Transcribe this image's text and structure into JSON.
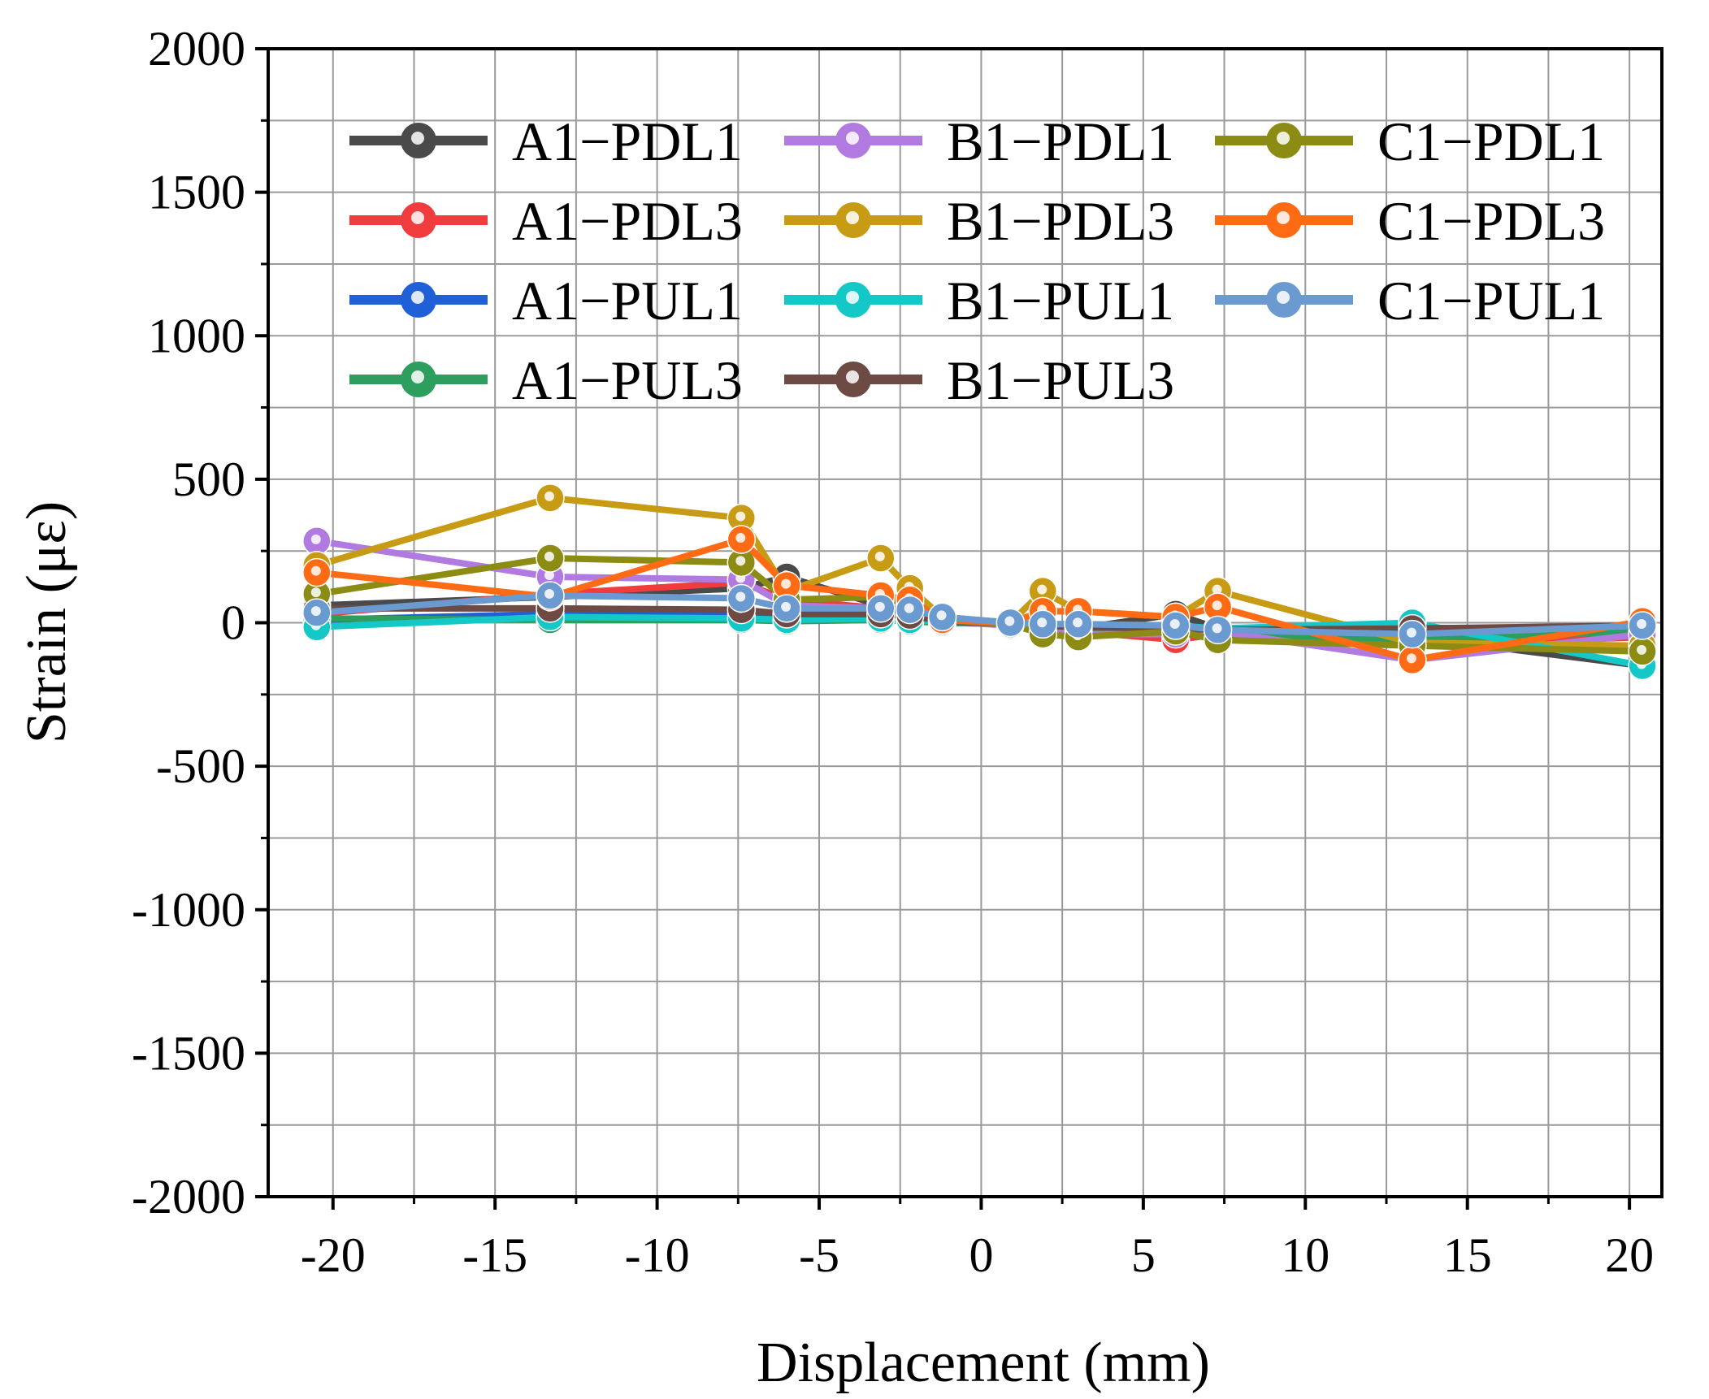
{
  "chart_data": {
    "type": "line",
    "title": "",
    "xlabel": "Displacement (mm)",
    "ylabel": "Strain (με)",
    "xlim": [
      -22,
      21
    ],
    "ylim": [
      -2000,
      2000
    ],
    "xticks": [
      -20,
      -15,
      -10,
      -5,
      0,
      5,
      10,
      15,
      20
    ],
    "xtick_labels": [
      "-20",
      "-15",
      "-10",
      "-5",
      "0",
      "5",
      "10",
      "15",
      "20"
    ],
    "yticks": [
      2000,
      1500,
      1000,
      500,
      0,
      -500,
      -1000,
      -1500,
      -2000
    ],
    "ytick_labels": [
      "2000",
      "1500",
      "1000",
      "500",
      "0",
      "-500",
      "-1000",
      "-1500",
      "-2000"
    ],
    "grid": true,
    "legend_position": "top",
    "series": [
      {
        "name": "A1−PDL1",
        "color": "#4a4a4a",
        "x": [
          -20.5,
          -13.3,
          -7.4,
          -6.0,
          -3.1,
          -2.2,
          -1.2,
          0.9,
          1.9,
          3.0,
          6.0,
          7.3,
          13.3,
          20.4
        ],
        "y": [
          60,
          90,
          120,
          160,
          60,
          40,
          10,
          -5,
          -15,
          -20,
          30,
          -20,
          -50,
          -150
        ]
      },
      {
        "name": "A1−PDL3",
        "color": "#f03c3c",
        "x": [
          -20.5,
          -13.3,
          -7.4,
          -6.0,
          -3.1,
          -2.2,
          -1.2,
          0.9,
          1.9,
          3.0,
          6.0,
          7.3,
          13.3,
          20.4
        ],
        "y": [
          30,
          100,
          140,
          80,
          50,
          30,
          0,
          -5,
          -20,
          -30,
          -60,
          -40,
          -80,
          -50
        ]
      },
      {
        "name": "A1−PUL1",
        "color": "#1f5fd8",
        "x": [
          -20.5,
          -13.3,
          -7.4,
          -6.0,
          -3.1,
          -2.2,
          -1.2,
          0.9,
          1.9,
          3.0,
          6.0,
          7.3,
          13.3,
          20.4
        ],
        "y": [
          10,
          30,
          30,
          20,
          20,
          15,
          5,
          -5,
          -10,
          -15,
          -20,
          -30,
          -40,
          -20
        ]
      },
      {
        "name": "A1−PUL3",
        "color": "#2e9e5e",
        "x": [
          -20.5,
          -13.3,
          -7.4,
          -6.0,
          -3.1,
          -2.2,
          -1.2,
          0.9,
          1.9,
          3.0,
          6.0,
          7.3,
          13.3,
          20.4
        ],
        "y": [
          15,
          10,
          10,
          5,
          10,
          5,
          0,
          -5,
          -15,
          -20,
          -30,
          -40,
          -60,
          -30
        ]
      },
      {
        "name": "B1−PDL1",
        "color": "#b07ae0",
        "x": [
          -20.5,
          -13.3,
          -7.4,
          -6.0,
          -3.1,
          -2.2,
          -1.2,
          0.9,
          1.9,
          3.0,
          6.0,
          7.3,
          13.3,
          20.4
        ],
        "y": [
          285,
          160,
          150,
          60,
          50,
          30,
          5,
          -10,
          -30,
          -40,
          -40,
          -30,
          -130,
          -40
        ]
      },
      {
        "name": "B1−PDL3",
        "color": "#c89b14",
        "x": [
          -20.5,
          -13.3,
          -7.4,
          -6.0,
          -3.1,
          -2.2,
          -1.2,
          0.9,
          1.9,
          3.0,
          6.0,
          7.3,
          13.3,
          20.4
        ],
        "y": [
          200,
          435,
          365,
          110,
          225,
          120,
          20,
          0,
          110,
          40,
          20,
          110,
          -70,
          -80
        ]
      },
      {
        "name": "B1−PUL1",
        "color": "#14c8c8",
        "x": [
          -20.5,
          -13.3,
          -7.4,
          -6.0,
          -3.1,
          -2.2,
          -1.2,
          0.9,
          1.9,
          3.0,
          6.0,
          7.3,
          13.3,
          20.4
        ],
        "y": [
          -15,
          20,
          15,
          10,
          15,
          10,
          5,
          0,
          -5,
          -5,
          -10,
          -20,
          0,
          -150
        ]
      },
      {
        "name": "B1−PUL3",
        "color": "#6e4a44",
        "x": [
          -20.5,
          -13.3,
          -7.4,
          -6.0,
          -3.1,
          -2.2,
          -1.2,
          0.9,
          1.9,
          3.0,
          6.0,
          7.3,
          13.3,
          20.4
        ],
        "y": [
          50,
          50,
          45,
          30,
          30,
          25,
          5,
          -5,
          -10,
          -15,
          -20,
          -25,
          -20,
          -10
        ]
      },
      {
        "name": "C1−PDL1",
        "color": "#8c8c14",
        "x": [
          -20.5,
          -13.3,
          -7.4,
          -6.0,
          -3.1,
          -2.2,
          -1.2,
          0.9,
          1.9,
          3.0,
          6.0,
          7.3,
          13.3,
          20.4
        ],
        "y": [
          100,
          225,
          210,
          80,
          90,
          60,
          10,
          -5,
          -40,
          -50,
          -30,
          -60,
          -80,
          -100
        ]
      },
      {
        "name": "C1−PDL3",
        "color": "#ff6a14",
        "x": [
          -20.5,
          -13.3,
          -7.4,
          -6.0,
          -3.1,
          -2.2,
          -1.2,
          0.9,
          1.9,
          3.0,
          6.0,
          7.3,
          13.3,
          20.4
        ],
        "y": [
          175,
          90,
          290,
          130,
          95,
          80,
          10,
          0,
          40,
          40,
          20,
          55,
          -130,
          5
        ]
      },
      {
        "name": "C1−PUL1",
        "color": "#6a9ad0",
        "x": [
          -20.5,
          -13.3,
          -7.4,
          -6.0,
          -3.1,
          -2.2,
          -1.2,
          0.9,
          1.9,
          3.0,
          6.0,
          7.3,
          13.3,
          20.4
        ],
        "y": [
          35,
          95,
          85,
          50,
          50,
          45,
          20,
          0,
          -5,
          -5,
          -10,
          -25,
          -40,
          -10
        ]
      }
    ]
  }
}
